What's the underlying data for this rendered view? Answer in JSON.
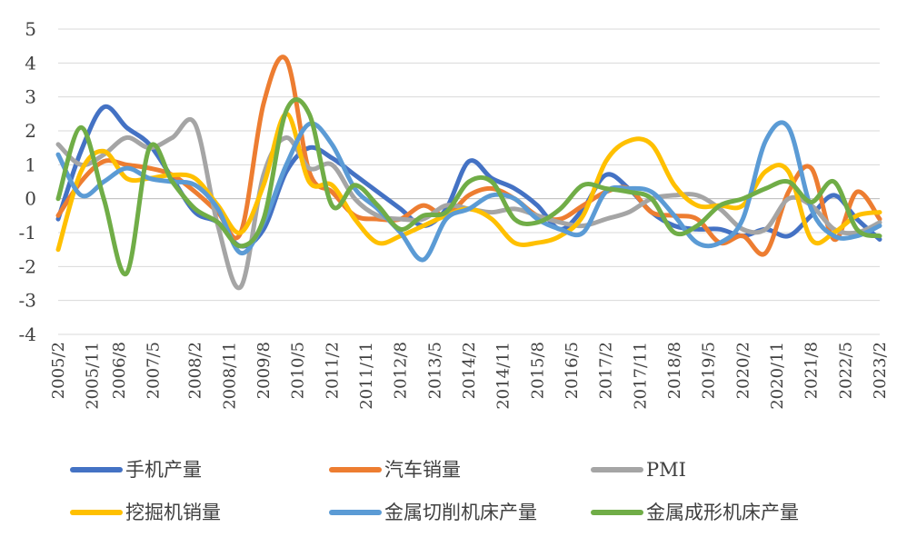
{
  "chart_data": {
    "type": "line",
    "title": "",
    "xlabel": "",
    "ylabel": "",
    "ylim": [
      -4,
      5
    ],
    "yticks": [
      -4,
      -3,
      -2,
      -1,
      0,
      1,
      2,
      3,
      4,
      5
    ],
    "ytick_labels": [
      "-4",
      "-3",
      "-2",
      "-1",
      "0",
      "1",
      "2",
      "3",
      "4",
      "5"
    ],
    "x": [
      0,
      6,
      12,
      18,
      24,
      30,
      36,
      42,
      48,
      54,
      60,
      66,
      72,
      78,
      84,
      90,
      96,
      102,
      108,
      114,
      120,
      126,
      132,
      138,
      144,
      150,
      156,
      162,
      168,
      174,
      180,
      186,
      192,
      198,
      204,
      210,
      216
    ],
    "xtick_positions": [
      0,
      9,
      16,
      25,
      36,
      45,
      54,
      63,
      72,
      81,
      90,
      99,
      108,
      117,
      126,
      135,
      144,
      153,
      162,
      171,
      180,
      189,
      198,
      207,
      216
    ],
    "xtick_labels": [
      "2005/2",
      "2005/11",
      "2006/8",
      "2007/5",
      "2008/2",
      "2008/11",
      "2009/8",
      "2010/5",
      "2011/2",
      "2011/11",
      "2012/8",
      "2013/5",
      "2014/2",
      "2014/11",
      "2015/8",
      "2016/5",
      "2017/2",
      "2017/11",
      "2018/8",
      "2019/5",
      "2020/2",
      "2020/11",
      "2021/8",
      "2022/5",
      "2023/2"
    ],
    "grid": true,
    "legend_position": "bottom",
    "series": [
      {
        "name": "手机产量",
        "color": "#4472C4",
        "values": [
          -0.6,
          1.4,
          2.7,
          2.1,
          1.6,
          0.6,
          -0.4,
          -0.7,
          -1.4,
          -0.9,
          0.8,
          1.5,
          1.2,
          0.7,
          0.2,
          -0.3,
          -0.8,
          -0.3,
          1.1,
          0.6,
          0.3,
          -0.2,
          -0.9,
          -0.3,
          0.7,
          0.3,
          -0.4,
          -0.8,
          -0.9,
          -0.9,
          -1.1,
          -0.9,
          -1.1,
          -0.5,
          0.1,
          -0.6,
          -1.2
        ]
      },
      {
        "name": "汽车销量",
        "color": "#ED7D31",
        "values": [
          -0.5,
          0.5,
          1.1,
          1.0,
          0.9,
          0.7,
          0.2,
          -0.4,
          -1.0,
          2.8,
          4.1,
          0.8,
          0.2,
          -0.5,
          -0.6,
          -0.6,
          -0.2,
          -0.5,
          0.1,
          0.3,
          0.0,
          -0.5,
          -0.6,
          -0.2,
          0.2,
          0.3,
          -0.4,
          -0.5,
          -0.6,
          -1.3,
          -1.1,
          -1.6,
          0.2,
          0.9,
          -1.2,
          0.2,
          -0.6
        ]
      },
      {
        "name": "PMI",
        "color": "#A5A5A5",
        "values": [
          1.6,
          1.0,
          1.3,
          1.8,
          1.5,
          1.8,
          2.2,
          -0.8,
          -2.6,
          0.7,
          1.8,
          0.9,
          1.0,
          0.0,
          -0.5,
          -0.6,
          -0.6,
          -0.2,
          -0.3,
          -0.4,
          -0.3,
          -0.5,
          -0.7,
          -0.8,
          -0.6,
          -0.4,
          0.0,
          0.1,
          0.1,
          -0.3,
          -0.9,
          -0.9,
          0.0,
          -0.2,
          -0.9,
          -1.0,
          -0.7
        ]
      },
      {
        "name": "挖掘机销量",
        "color": "#FFC000",
        "values": [
          -1.5,
          0.8,
          1.4,
          0.6,
          0.6,
          0.7,
          0.6,
          -0.2,
          -1.0,
          0.4,
          2.5,
          0.5,
          0.4,
          -0.6,
          -1.3,
          -1.1,
          -0.8,
          -0.5,
          -0.3,
          -0.6,
          -1.3,
          -1.3,
          -1.1,
          -0.5,
          1.1,
          1.7,
          1.6,
          0.4,
          -0.2,
          -0.2,
          -0.2,
          0.8,
          0.8,
          -1.2,
          -1.0,
          -0.5,
          -0.4
        ]
      },
      {
        "name": "金属切削机床产量",
        "color": "#5B9BD5",
        "values": [
          1.3,
          0.1,
          0.5,
          0.9,
          0.6,
          0.5,
          0.4,
          -0.3,
          -1.6,
          -0.7,
          1.0,
          2.2,
          1.6,
          0.3,
          -0.3,
          -1.0,
          -1.8,
          -0.6,
          -0.3,
          0.1,
          0.0,
          -0.6,
          -0.9,
          -1.0,
          0.2,
          0.3,
          0.2,
          -0.5,
          -1.3,
          -1.3,
          -0.6,
          1.7,
          2.1,
          -0.3,
          -1.1,
          -1.1,
          -0.8
        ]
      },
      {
        "name": "金属成形机床产量",
        "color": "#70AD47",
        "values": [
          0.0,
          2.1,
          0.0,
          -2.2,
          1.5,
          0.5,
          -0.3,
          -0.7,
          -1.4,
          -0.6,
          2.6,
          2.5,
          -0.2,
          0.4,
          -0.2,
          -0.9,
          -0.5,
          -0.4,
          0.5,
          0.5,
          -0.6,
          -0.7,
          -0.3,
          0.4,
          0.3,
          0.2,
          0.0,
          -1.0,
          -0.8,
          -0.2,
          0.0,
          0.3,
          0.5,
          -0.1,
          0.5,
          -0.9,
          -1.1
        ]
      }
    ]
  }
}
